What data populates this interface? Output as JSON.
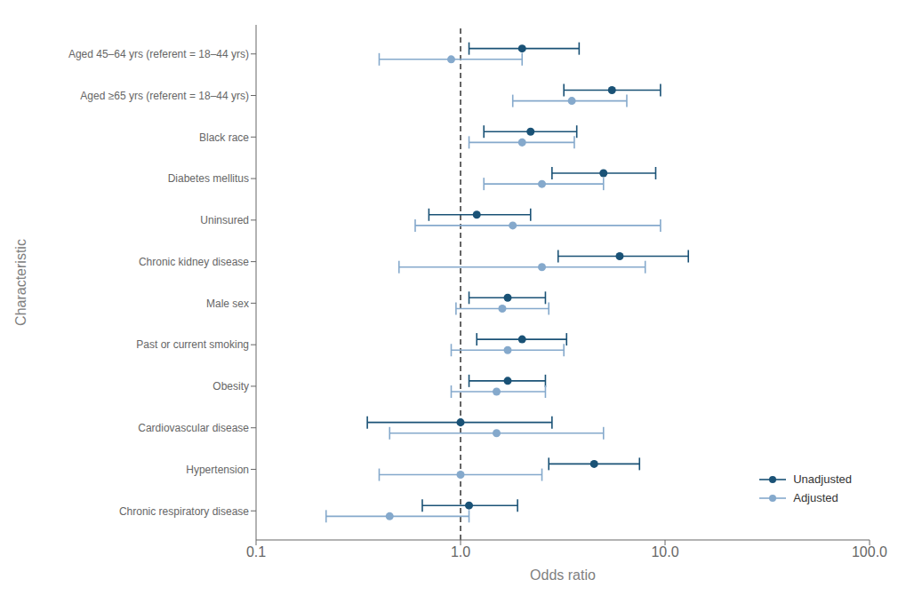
{
  "chart_data": {
    "type": "scatter",
    "orientation": "horizontal",
    "x_label": "Odds ratio",
    "y_label": "Characteristic",
    "categories": [
      "Aged 45–64 yrs (referent = 18–44 yrs)",
      "Aged ≥65 yrs (referent = 18–44 yrs)",
      "Black race",
      "Diabetes mellitus",
      "Uninsured",
      "Chronic kidney disease",
      "Male sex",
      "Past or current smoking",
      "Obesity",
      "Cardiovascular disease",
      "Hypertension",
      "Chronic respiratory disease"
    ],
    "series": [
      {
        "name": "Unadjusted",
        "color": "#1a5276",
        "marker": "circle",
        "values": [
          2.0,
          5.5,
          2.2,
          5.0,
          1.2,
          6.0,
          1.7,
          2.0,
          1.7,
          1.0,
          4.5,
          1.1
        ],
        "ci_lo": [
          1.1,
          3.2,
          1.3,
          2.8,
          0.7,
          3.0,
          1.1,
          1.2,
          1.1,
          0.35,
          2.7,
          0.65
        ],
        "ci_hi": [
          3.8,
          9.5,
          3.7,
          9.0,
          2.2,
          13.0,
          2.6,
          3.3,
          2.6,
          2.8,
          7.5,
          1.9
        ]
      },
      {
        "name": "Adjusted",
        "color": "#85a9cc",
        "marker": "circle",
        "values": [
          0.9,
          3.5,
          2.0,
          2.5,
          1.8,
          2.5,
          1.6,
          1.7,
          1.5,
          1.5,
          1.0,
          0.45
        ],
        "ci_lo": [
          0.4,
          1.8,
          1.1,
          1.3,
          0.6,
          0.5,
          0.95,
          0.9,
          0.9,
          0.45,
          0.4,
          0.22
        ],
        "ci_hi": [
          2.0,
          6.5,
          3.6,
          5.0,
          9.5,
          8.0,
          2.7,
          3.2,
          2.6,
          5.0,
          2.5,
          1.1
        ]
      }
    ],
    "xlim": [
      0.1,
      100.0
    ],
    "xticks": [
      0.1,
      {
        "value": 1.0,
        "label": "1.0"
      },
      {
        "value": 10.0,
        "label": "10.0"
      },
      {
        "value": 100.0,
        "label": "100.0"
      }
    ],
    "log": "x",
    "grid": false,
    "legend": "lower right",
    "reference_lines": [
      {
        "x": 1.0,
        "line_style": "dashed"
      }
    ]
  }
}
